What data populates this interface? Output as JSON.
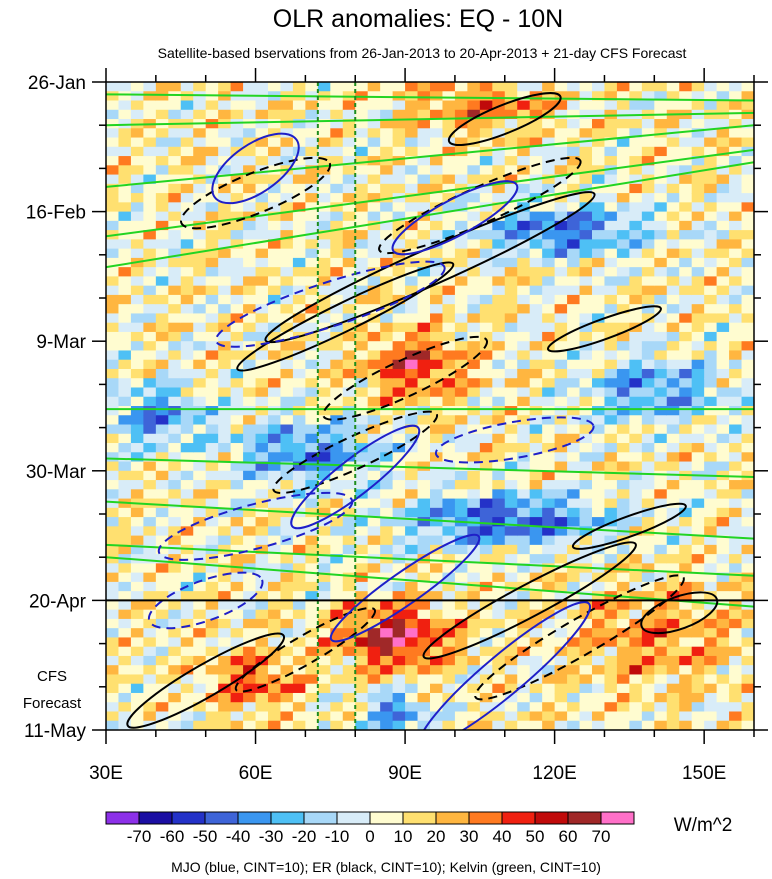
{
  "chart_data": {
    "type": "heatmap",
    "title": "OLR anomalies: EQ - 10N",
    "subtitle": "Satellite-based bservations from 26-Jan-2013 to 20-Apr-2013 + 21-day CFS Forecast",
    "x_axis": {
      "range": [
        30,
        160
      ],
      "tick_values": [
        30,
        60,
        90,
        120,
        150
      ],
      "tick_labels": [
        "30E",
        "60E",
        "90E",
        "120E",
        "150E"
      ]
    },
    "y_axis": {
      "range_days": [
        0,
        105
      ],
      "inverted": true,
      "tick_days": [
        0,
        21,
        42,
        63,
        84,
        105
      ],
      "tick_labels": [
        "26-Jan",
        "16-Feb",
        "9-Mar",
        "30-Mar",
        "20-Apr",
        "11-May"
      ]
    },
    "forecast_label": [
      "CFS",
      "Forecast"
    ],
    "observation_end_day": 84,
    "colorbar": {
      "levels": [
        -70,
        -60,
        -50,
        -40,
        -30,
        -20,
        -10,
        0,
        10,
        20,
        30,
        40,
        50,
        60,
        70
      ],
      "level_labels": [
        "-70",
        "-60",
        "-50",
        "-40",
        "-30",
        "-20",
        "-10",
        "0",
        "10",
        "20",
        "30",
        "40",
        "50",
        "60",
        "70"
      ],
      "colors": [
        "#8c30e8",
        "#1b0ea3",
        "#2432c8",
        "#3e64d8",
        "#3a96f0",
        "#4ec0f5",
        "#a8d8f8",
        "#d8ecf8",
        "#fffcd0",
        "#ffe070",
        "#ffb640",
        "#ff7a20",
        "#f02010",
        "#c00a0a",
        "#a02828",
        "#ff70c8"
      ],
      "units": "W/m^2"
    },
    "vertical_reference_lines_lon": [
      72.5,
      80
    ],
    "footnote": "MJO (blue, CINT=10); ER (black, CINT=10); Kelvin (green, CINT=10)",
    "contour_series": [
      {
        "name": "MJO",
        "color": "#1f1fc8"
      },
      {
        "name": "ER",
        "color": "#000000"
      },
      {
        "name": "Kelvin",
        "color": "#22d422"
      }
    ]
  }
}
